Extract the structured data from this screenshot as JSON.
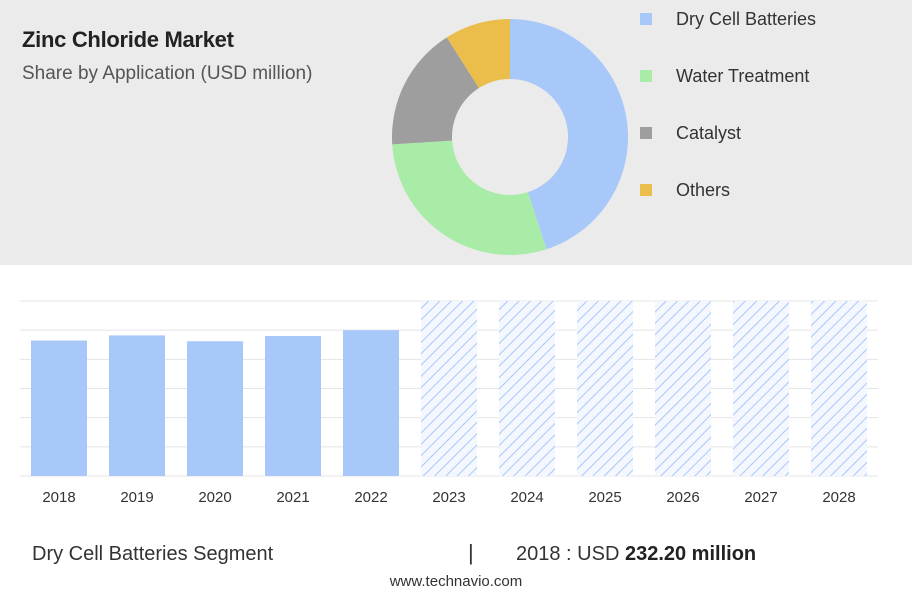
{
  "header": {
    "title": "Zinc Chloride Market",
    "subtitle": "Share by Application (USD million)"
  },
  "colors": {
    "dry_cell": "#a8c8fa",
    "water_treatment": "#a8eca8",
    "catalyst": "#9e9e9e",
    "others": "#ebbd4a",
    "forecast_hatch": "#a8c8fa"
  },
  "chart_data": [
    {
      "type": "pie",
      "donut": true,
      "categories": [
        "Dry Cell Batteries",
        "Water Treatment",
        "Catalyst",
        "Others"
      ],
      "values": [
        45,
        29,
        17,
        9
      ],
      "legend_position": "right"
    },
    {
      "type": "bar",
      "categories": [
        "2018",
        "2019",
        "2020",
        "2021",
        "2022",
        "2023",
        "2024",
        "2025",
        "2026",
        "2027",
        "2028"
      ],
      "values": [
        232.2,
        241,
        231,
        240,
        250,
        null,
        null,
        null,
        null,
        null,
        null
      ],
      "forecast_categories": [
        "2023",
        "2024",
        "2025",
        "2026",
        "2027",
        "2028"
      ],
      "ylim": [
        0,
        300
      ],
      "grid": true
    }
  ],
  "footer": {
    "segment_label": "Dry Cell Batteries Segment",
    "separator": "|",
    "value_prefix": "2018 : USD",
    "value_bold": "232.20 million",
    "source": "www.technavio.com"
  }
}
